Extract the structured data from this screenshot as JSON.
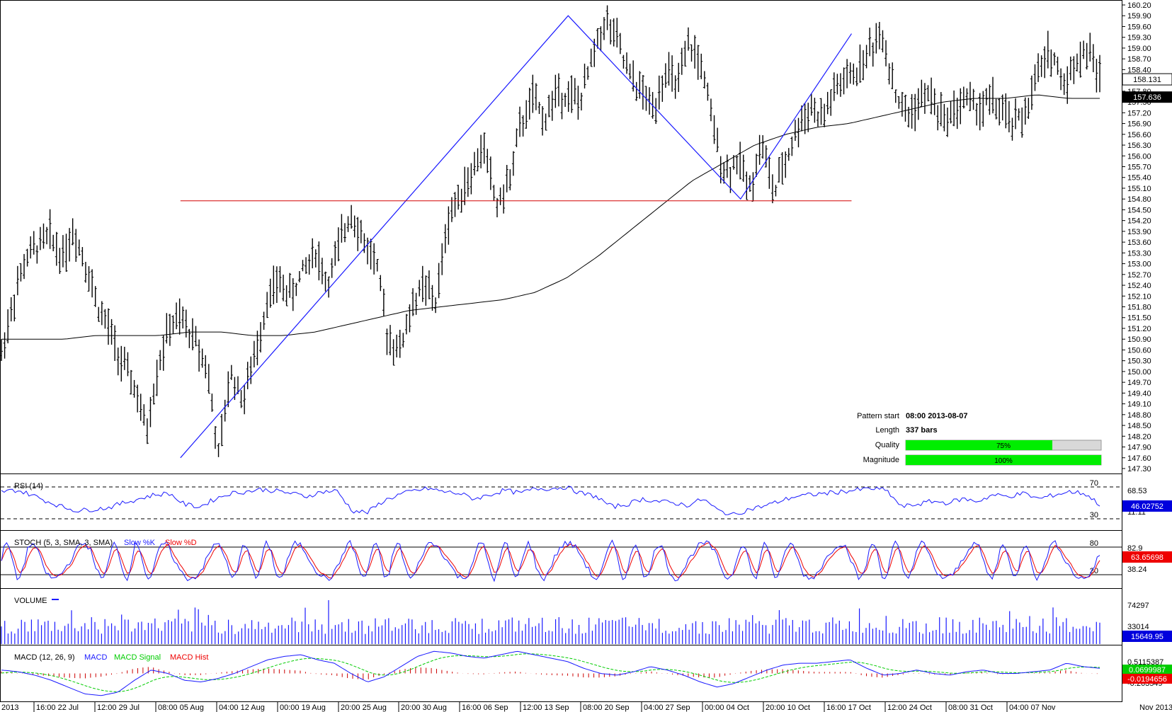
{
  "chart_data": {
    "type": "ohlc",
    "instrument_note": "",
    "price_axis": {
      "min": 147.3,
      "max": 160.2,
      "ticks": [
        "160.20",
        "159.90",
        "159.60",
        "159.30",
        "159.00",
        "158.70",
        "158.40",
        "158.10",
        "157.80",
        "157.50",
        "157.20",
        "156.90",
        "156.60",
        "156.30",
        "156.00",
        "155.70",
        "155.40",
        "155.10",
        "154.80",
        "154.50",
        "154.20",
        "153.90",
        "153.60",
        "153.30",
        "153.00",
        "152.70",
        "152.40",
        "152.10",
        "151.80",
        "151.50",
        "151.20",
        "150.90",
        "150.60",
        "150.30",
        "150.00",
        "149.70",
        "149.40",
        "149.10",
        "148.80",
        "148.50",
        "148.20",
        "147.90",
        "147.60",
        "147.30"
      ],
      "current_price": "158.131",
      "ma_value": "157.636"
    },
    "time_axis": {
      "labels": [
        "2013",
        "16:00 22 Jul",
        "12:00 29 Jul",
        "08:00 05 Aug",
        "04:00 12 Aug",
        "00:00 19 Aug",
        "20:00 25 Aug",
        "20:00 30 Aug",
        "16:00 06 Sep",
        "12:00 13 Sep",
        "08:00 20 Sep",
        "04:00 27 Sep",
        "00:00 04 Oct",
        "20:00 10 Oct",
        "16:00 17 Oct",
        "12:00 24 Oct",
        "08:00 31 Oct",
        "04:00 07 Nov",
        "Nov 2013"
      ]
    },
    "price_path": [
      150.5,
      152.0,
      153.1,
      153.5,
      153.8,
      153.2,
      153.9,
      153.0,
      151.8,
      151.1,
      150.2,
      149.6,
      148.3,
      150.2,
      151.3,
      151.4,
      150.9,
      150.2,
      147.6,
      150.0,
      149.2,
      150.4,
      152.0,
      152.5,
      152.1,
      152.8,
      153.4,
      152.4,
      153.5,
      154.5,
      153.6,
      153.1,
      151.0,
      150.6,
      151.8,
      152.4,
      151.9,
      154.2,
      155.0,
      155.5,
      156.3,
      154.6,
      155.2,
      156.8,
      157.6,
      157.0,
      157.8,
      157.7,
      157.5,
      158.8,
      159.8,
      159.2,
      158.2,
      157.8,
      157.3,
      158.4,
      157.9,
      159.1,
      158.5,
      156.7,
      155.5,
      155.9,
      155.1,
      156.4,
      154.9,
      155.9,
      156.8,
      157.4,
      157.0,
      157.8,
      158.1,
      158.4,
      159.0,
      159.4,
      157.8,
      157.1,
      157.5,
      157.7,
      157.0,
      157.3,
      157.6,
      157.3,
      157.6,
      157.1,
      156.9,
      157.3,
      158.4,
      158.9,
      158.0,
      158.6,
      159.0,
      158.2
    ],
    "moving_average": [
      150.9,
      150.9,
      150.9,
      151.0,
      151.0,
      151.0,
      151.1,
      151.1,
      151.0,
      151.0,
      151.1,
      151.3,
      151.5,
      151.7,
      151.8,
      151.9,
      152.0,
      152.2,
      152.6,
      153.2,
      153.9,
      154.6,
      155.3,
      155.8,
      156.3,
      156.6,
      156.8,
      156.9,
      157.1,
      157.3,
      157.5,
      157.6,
      157.6,
      157.7,
      157.6,
      157.6
    ],
    "pattern_lines": {
      "zigzag": [
        {
          "t": 0.163,
          "p": 147.6
        },
        {
          "t": 0.516,
          "p": 159.9
        },
        {
          "t": 0.673,
          "p": 154.8
        },
        {
          "t": 0.774,
          "p": 159.4
        }
      ],
      "support_level": 154.75,
      "support_span": [
        0.163,
        0.774
      ]
    },
    "pattern_info": {
      "pattern_start_label": "Pattern start",
      "pattern_start_value": "08:00 2013-08-07",
      "length_label": "Length",
      "length_value": "337 bars",
      "quality_label": "Quality",
      "quality_value": 75,
      "quality_text": "75%",
      "magnitude_label": "Magnitude",
      "magnitude_value": 100,
      "magnitude_text": "100%"
    },
    "rsi": {
      "label": "RSI (14)",
      "levels": [
        70,
        30
      ],
      "level_labels": [
        "70",
        "30"
      ],
      "axis_labels": [
        "68.53",
        "11.11"
      ],
      "current": "46.02752",
      "values": [
        64,
        66,
        60,
        52,
        45,
        40,
        42,
        44,
        50,
        55,
        60,
        62,
        48,
        45,
        55,
        62,
        64,
        67,
        65,
        62,
        58,
        64,
        65,
        40,
        38,
        52,
        60,
        65,
        68,
        64,
        62,
        55,
        60,
        66,
        62,
        68,
        68,
        70,
        62,
        58,
        45,
        48,
        55,
        52,
        50,
        47,
        55,
        40,
        35,
        42,
        46,
        52,
        58,
        60,
        62,
        64,
        66,
        68,
        66,
        45,
        48,
        52,
        50,
        55,
        52,
        60,
        58,
        62,
        55,
        60,
        64,
        62,
        48
      ]
    },
    "stoch": {
      "label": "STOCH (5, 3, SMA, 3, SMA)",
      "slow_k_label": "Slow %K",
      "slow_d_label": "Slow %D",
      "levels": [
        80,
        20
      ],
      "level_labels": [
        "80",
        "20"
      ],
      "axis_labels": [
        "82.9",
        "38.24"
      ],
      "current": "63.65698"
    },
    "volume": {
      "label": "VOLUME",
      "axis_labels": [
        "74297",
        "33014"
      ],
      "current": "15649.95"
    },
    "macd": {
      "label": "MACD (12, 26, 9)",
      "macd_label": "MACD",
      "signal_label": "MACD Signal",
      "hist_label": "MACD Hist",
      "axis_labels": [
        "0.5115387",
        "-0.263549"
      ],
      "current_macd": "0.0699987",
      "current_hist": "-0.0194656",
      "values": [
        0.1,
        0.05,
        -0.05,
        -0.2,
        -0.4,
        -0.6,
        -0.65,
        -0.55,
        -0.2,
        0.1,
        0.0,
        -0.2,
        -0.25,
        -0.15,
        0.0,
        0.2,
        0.4,
        0.5,
        0.55,
        0.4,
        0.3,
        0.0,
        -0.25,
        -0.1,
        0.2,
        0.5,
        0.65,
        0.6,
        0.5,
        0.45,
        0.55,
        0.65,
        0.55,
        0.45,
        0.35,
        0.15,
        0.0,
        -0.05,
        0.05,
        0.2,
        0.1,
        -0.05,
        -0.25,
        -0.4,
        -0.3,
        -0.1,
        0.1,
        0.25,
        0.3,
        0.3,
        0.35,
        0.4,
        0.15,
        -0.05,
        0.0,
        0.1,
        0.0,
        -0.05,
        0.05,
        0.1,
        0.0,
        0.0,
        0.05,
        0.1,
        0.3,
        0.2,
        0.15
      ]
    },
    "colors": {
      "bars": "#000000",
      "pattern_line": "#1a1aff",
      "support_line": "#d40000",
      "moving_average": "#000000",
      "rsi_line": "#1a1aff",
      "stoch_k": "#1a1aff",
      "stoch_d": "#ee0000",
      "volume": "#1a1aff",
      "macd_line": "#1a1aff",
      "macd_signal": "#00cc00",
      "macd_hist": "#cc0000",
      "quality_fill": "#00ee00",
      "badge_blue": "#0000dd",
      "badge_black": "#000000",
      "badge_red": "#ee0000",
      "badge_green": "#00cc00"
    },
    "grid": false
  }
}
